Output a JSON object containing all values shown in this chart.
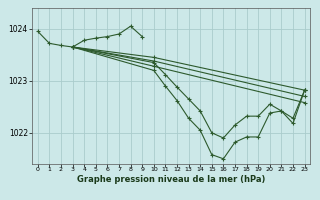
{
  "title": "Graphe pression niveau de la mer (hPa)",
  "bg_color": "#cce8e8",
  "grid_color": "#aacccc",
  "line_color": "#2d5a2d",
  "ylim": [
    1021.4,
    1024.4
  ],
  "xlim": [
    -0.5,
    23.5
  ],
  "yticks": [
    1022,
    1023,
    1024
  ],
  "xticks": [
    0,
    1,
    2,
    3,
    4,
    5,
    6,
    7,
    8,
    9,
    10,
    11,
    12,
    13,
    14,
    15,
    16,
    17,
    18,
    19,
    20,
    21,
    22,
    23
  ],
  "lines": [
    {
      "x": [
        0,
        1,
        2,
        3,
        4,
        5,
        6,
        7,
        8,
        9
      ],
      "y": [
        1023.95,
        1023.72,
        1023.68,
        1023.65,
        1023.78,
        1023.82,
        1023.85,
        1023.9,
        1024.05,
        1023.85
      ]
    },
    {
      "x": [
        3,
        10,
        23
      ],
      "y": [
        1023.65,
        1023.45,
        1022.82
      ]
    },
    {
      "x": [
        3,
        10,
        23
      ],
      "y": [
        1023.65,
        1023.38,
        1022.7
      ]
    },
    {
      "x": [
        3,
        10,
        23
      ],
      "y": [
        1023.65,
        1023.28,
        1022.58
      ]
    },
    {
      "x": [
        3,
        10,
        11,
        12,
        13,
        14,
        15,
        16,
        17,
        18,
        19,
        20,
        21,
        22,
        23
      ],
      "y": [
        1023.65,
        1023.35,
        1023.12,
        1022.88,
        1022.65,
        1022.42,
        1022.0,
        1021.9,
        1022.15,
        1022.32,
        1022.32,
        1022.55,
        1022.42,
        1022.28,
        1022.82
      ]
    },
    {
      "x": [
        3,
        10,
        11,
        12,
        13,
        14,
        15,
        16,
        17,
        18,
        19,
        20,
        21,
        22,
        23
      ],
      "y": [
        1023.65,
        1023.2,
        1022.9,
        1022.62,
        1022.28,
        1022.05,
        1021.58,
        1021.5,
        1021.82,
        1021.92,
        1021.92,
        1022.38,
        1022.42,
        1022.18,
        1022.82
      ]
    }
  ]
}
